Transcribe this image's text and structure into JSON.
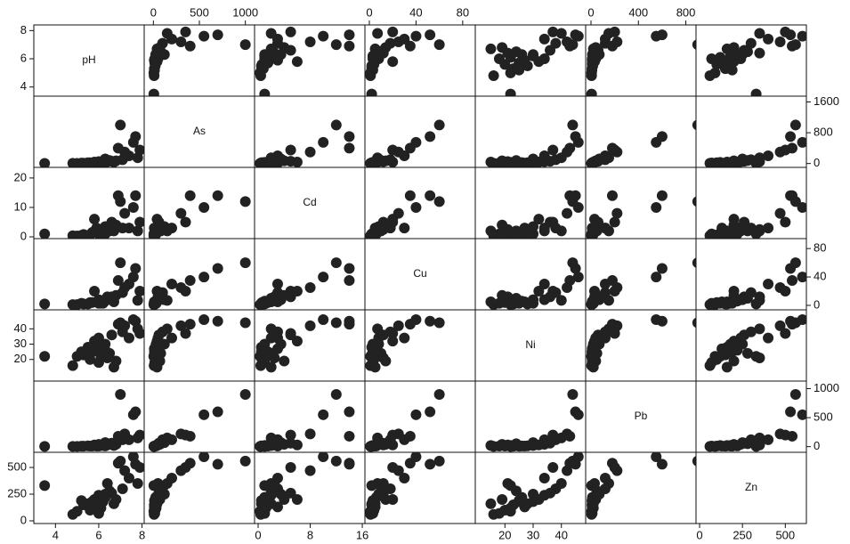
{
  "chart_data": {
    "type": "scatter-matrix",
    "point_color": "#222222",
    "variables": [
      {
        "name": "pH",
        "values": [
          7.0,
          7.7,
          7.6,
          6.9,
          7.2,
          7.8,
          7.1,
          6.6,
          6.0,
          5.8,
          6.2,
          5.5,
          5.9,
          6.3,
          5.7,
          6.5,
          5.3,
          6.1,
          5.0,
          6.4,
          5.6,
          6.8,
          6.0,
          4.8,
          6.7,
          3.5,
          5.2,
          7.4,
          6.3,
          7.9
        ],
        "xlim": [
          3.0,
          8.1
        ],
        "ylim": [
          3.35,
          8.4
        ],
        "xticks": [
          4,
          6,
          8
        ],
        "yticks": [
          4,
          6,
          8
        ]
      },
      {
        "name": "As",
        "values": [
          1000,
          700,
          550,
          400,
          300,
          150,
          100,
          60,
          50,
          40,
          30,
          20,
          10,
          25,
          15,
          80,
          10,
          30,
          5,
          50,
          20,
          70,
          15,
          8,
          40,
          5,
          12,
          200,
          120,
          350
        ],
        "xlim": [
          -100,
          1100
        ],
        "ylim": [
          -100,
          1750
        ],
        "xticks": [
          0,
          500,
          1000
        ],
        "yticks": [
          0,
          800,
          1600
        ]
      },
      {
        "name": "Cd",
        "values": [
          12,
          14,
          10,
          14,
          8,
          2,
          3,
          5,
          2,
          6,
          1,
          0.5,
          3,
          1,
          1.5,
          2,
          0.8,
          1.2,
          0.3,
          2.5,
          0.6,
          4,
          1,
          0.4,
          2,
          1,
          0.5,
          3,
          3.5,
          5
        ],
        "xlim": [
          -0.55,
          16.4
        ],
        "ylim": [
          -0.6,
          23.6
        ],
        "xticks": [
          0,
          8,
          16
        ],
        "yticks": [
          0,
          10,
          20
        ]
      },
      {
        "name": "Cu",
        "values": [
          60,
          52,
          40,
          35,
          25,
          7,
          18,
          12,
          8,
          20,
          3,
          2,
          5,
          6,
          4,
          10,
          2,
          3,
          1,
          12,
          4,
          14,
          3,
          1,
          5,
          2,
          3,
          30,
          8,
          20
        ],
        "xlim": [
          -3.8,
          90.8
        ],
        "ylim": [
          -6.3,
          94
        ],
        "xticks": [
          0,
          40,
          80
        ],
        "yticks": [
          0,
          40,
          80
        ]
      },
      {
        "name": "Ni",
        "values": [
          44,
          45,
          46,
          43,
          42,
          40,
          38,
          36,
          34,
          32,
          30,
          28,
          27,
          26,
          25,
          24,
          23,
          22,
          22,
          21,
          20,
          19,
          18,
          16,
          15,
          22,
          25,
          34,
          30,
          37
        ],
        "xlim": [
          9.5,
          48.6
        ],
        "ylim": [
          5.9,
          52.4
        ],
        "xticks": [
          20,
          30,
          40
        ],
        "yticks": [
          20,
          30,
          40
        ]
      },
      {
        "name": "Pb",
        "values": [
          900,
          600,
          550,
          180,
          220,
          150,
          120,
          60,
          40,
          30,
          20,
          15,
          10,
          12,
          10,
          50,
          8,
          20,
          5,
          30,
          10,
          40,
          10,
          5,
          20,
          5,
          8,
          120,
          70,
          200
        ],
        "xlim": [
          -45,
          886
        ],
        "ylim": [
          -97,
          1130
        ],
        "xticks": [
          0,
          400,
          800
        ],
        "yticks": [
          0,
          500,
          1000
        ]
      },
      {
        "name": "Zn",
        "values": [
          560,
          530,
          600,
          540,
          470,
          350,
          300,
          260,
          240,
          200,
          180,
          160,
          130,
          220,
          180,
          280,
          150,
          120,
          90,
          350,
          100,
          200,
          70,
          60,
          160,
          330,
          190,
          400,
          250,
          500
        ],
        "xlim": [
          -21,
          623
        ],
        "ylim": [
          -25,
          642
        ],
        "xticks": [
          0,
          250,
          500
        ],
        "yticks": [
          0,
          250,
          500
        ]
      }
    ]
  }
}
